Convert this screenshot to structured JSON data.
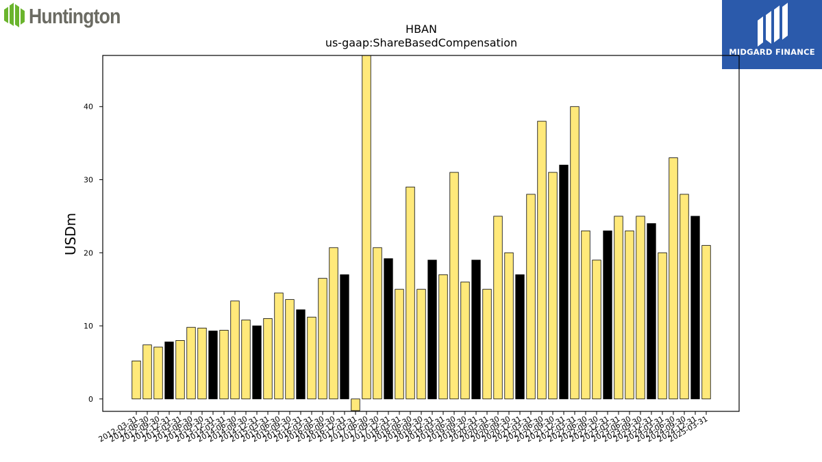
{
  "logos": {
    "left_brand_text": "Huntington",
    "right_brand_text": "MIDGARD FINANCE"
  },
  "colors": {
    "bar_primary": "#ffe97a",
    "bar_highlight": "#000000",
    "bar_edge": "#000000",
    "right_logo_bg": "#2b5aab",
    "left_logo_green": "#6ab42d",
    "left_logo_text": "#6b6b63"
  },
  "chart_data": {
    "type": "bar",
    "title": "HBAN",
    "subtitle": "us-gaap:ShareBasedCompensation",
    "xlabel": "",
    "ylabel": "USDm",
    "ylim": [
      -1.7,
      47
    ],
    "yticks": [
      0,
      10,
      20,
      30,
      40
    ],
    "grid": false,
    "categories": [
      "2012-03-31",
      "2012-06-30",
      "2012-09-30",
      "2012-12-31",
      "2013-03-31",
      "2013-06-30",
      "2013-09-30",
      "2013-12-31",
      "2014-03-31",
      "2014-06-30",
      "2014-09-30",
      "2014-12-31",
      "2015-03-31",
      "2015-06-30",
      "2015-09-30",
      "2015-12-31",
      "2016-03-31",
      "2016-06-30",
      "2016-09-30",
      "2016-12-31",
      "2017-03-31",
      "2017-06-30",
      "2017-09-30",
      "2017-12-31",
      "2018-03-31",
      "2018-06-30",
      "2018-09-30",
      "2018-12-31",
      "2019-03-31",
      "2019-06-30",
      "2019-09-30",
      "2019-12-31",
      "2020-03-31",
      "2020-06-30",
      "2020-09-30",
      "2020-12-31",
      "2021-03-31",
      "2021-06-30",
      "2021-09-30",
      "2021-12-31",
      "2022-03-31",
      "2022-06-30",
      "2022-09-30",
      "2022-12-31",
      "2023-03-31",
      "2023-06-30",
      "2023-09-30",
      "2023-12-31",
      "2024-03-31",
      "2024-06-30",
      "2024-09-30",
      "2024-12-31",
      "2025-03-31"
    ],
    "values": [
      5.2,
      7.4,
      7.1,
      7.8,
      8.0,
      9.8,
      9.7,
      9.3,
      9.4,
      13.4,
      10.8,
      10.0,
      11.0,
      14.5,
      13.6,
      12.2,
      11.2,
      16.5,
      20.7,
      17.0,
      -1.6,
      47.0,
      20.7,
      19.2,
      15.0,
      29.0,
      15.0,
      19.0,
      17.0,
      31.0,
      16.0,
      19.0,
      15.0,
      25.0,
      20.0,
      17.0,
      28.0,
      38.0,
      31.0,
      32.0,
      40.0,
      23.0,
      19.0,
      23.0,
      25.0,
      23.0,
      25.0,
      24.0,
      20.0,
      33.0,
      28.0,
      25.0,
      21.0
    ],
    "highlight_index_mod": 4,
    "highlight_index_rem": 3
  }
}
